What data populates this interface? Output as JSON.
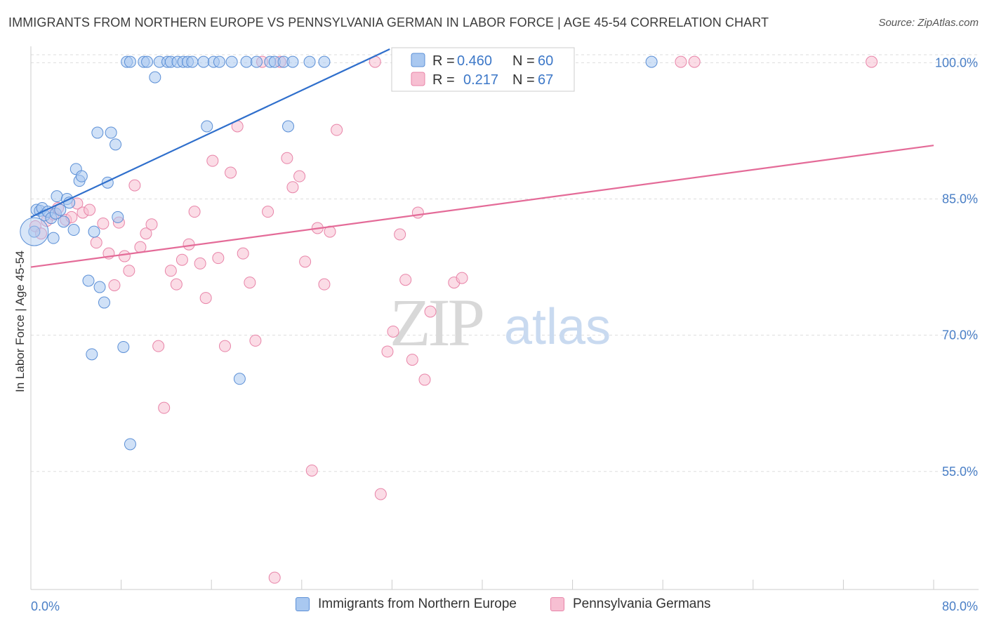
{
  "title": "IMMIGRANTS FROM NORTHERN EUROPE VS PENNSYLVANIA GERMAN IN LABOR FORCE | AGE 45-54 CORRELATION CHART",
  "source": "Source: ZipAtlas.com",
  "colors": {
    "blue_fill": "#a9c8f0",
    "blue_stroke": "#5b8fd6",
    "blue_line": "#2f6fcc",
    "pink_fill": "#f7bfd2",
    "pink_stroke": "#e884a8",
    "pink_line": "#e46b98",
    "tick_text": "#4a7fc6",
    "grid": "#dddddd"
  },
  "legend_box": {
    "rows": [
      {
        "r_label": "R =",
        "r_value": "0.460",
        "n_label": "N =",
        "n_value": "60"
      },
      {
        "r_label": "R =",
        "r_value": "0.217",
        "n_label": "N =",
        "n_value": "67"
      }
    ]
  },
  "bottom_legend": {
    "series1": "Immigrants from Northern Europe",
    "series2": "Pennsylvania Germans"
  },
  "watermark": {
    "zip": "ZIP",
    "atlas": "atlas"
  },
  "chart_data": {
    "type": "scatter",
    "title": "IMMIGRANTS FROM NORTHERN EUROPE VS PENNSYLVANIA GERMAN IN LABOR FORCE | AGE 45-54 CORRELATION CHART",
    "xlabel": "",
    "ylabel": "In Labor Force | Age 45-54",
    "xlim": [
      0,
      80
    ],
    "ylim": [
      42,
      101.5
    ],
    "x_tick_labels": [
      "0.0%",
      "80.0%"
    ],
    "y_ticks": [
      55,
      70,
      85,
      100
    ],
    "y_tick_labels": [
      "55.0%",
      "70.0%",
      "85.0%",
      "100.0%"
    ],
    "grid": true,
    "legend_position": "top-center",
    "series": [
      {
        "name": "Immigrants from Northern Europe",
        "r": 0.46,
        "n": 60,
        "trend": {
          "x": [
            0,
            31.8
          ],
          "y": [
            83.0,
            101.5
          ]
        },
        "points": [
          [
            0.3,
            81.4
          ],
          [
            0.5,
            83.8
          ],
          [
            0.8,
            83.7
          ],
          [
            1.0,
            84.0
          ],
          [
            1.2,
            83.2
          ],
          [
            1.5,
            83.6
          ],
          [
            1.8,
            82.9
          ],
          [
            2.0,
            80.7
          ],
          [
            2.2,
            83.4
          ],
          [
            2.3,
            85.3
          ],
          [
            2.6,
            83.8
          ],
          [
            2.9,
            82.5
          ],
          [
            3.2,
            85.0
          ],
          [
            3.4,
            84.6
          ],
          [
            3.8,
            81.6
          ],
          [
            4.0,
            88.3
          ],
          [
            4.3,
            87.0
          ],
          [
            4.5,
            87.5
          ],
          [
            5.1,
            76.0
          ],
          [
            5.4,
            67.9
          ],
          [
            5.6,
            81.4
          ],
          [
            5.9,
            92.3
          ],
          [
            6.1,
            75.3
          ],
          [
            6.5,
            73.6
          ],
          [
            6.8,
            86.8
          ],
          [
            7.1,
            92.3
          ],
          [
            7.5,
            91.0
          ],
          [
            7.7,
            83.0
          ],
          [
            8.2,
            68.7
          ],
          [
            8.8,
            58.0
          ],
          [
            8.5,
            100.1
          ],
          [
            8.8,
            100.1
          ],
          [
            10.0,
            100.1
          ],
          [
            10.3,
            100.1
          ],
          [
            11.0,
            98.4
          ],
          [
            11.4,
            100.1
          ],
          [
            12.1,
            100.1
          ],
          [
            12.4,
            100.1
          ],
          [
            13.0,
            100.1
          ],
          [
            13.5,
            100.1
          ],
          [
            13.9,
            100.1
          ],
          [
            14.3,
            100.1
          ],
          [
            15.3,
            100.1
          ],
          [
            15.6,
            93.0
          ],
          [
            16.2,
            100.1
          ],
          [
            16.7,
            100.1
          ],
          [
            17.8,
            100.1
          ],
          [
            18.5,
            65.2
          ],
          [
            19.1,
            100.1
          ],
          [
            20.0,
            100.1
          ],
          [
            21.2,
            100.1
          ],
          [
            21.6,
            100.1
          ],
          [
            22.4,
            100.1
          ],
          [
            22.8,
            93.0
          ],
          [
            23.2,
            100.1
          ],
          [
            24.7,
            100.1
          ],
          [
            26.0,
            100.1
          ],
          [
            32.5,
            100.1
          ],
          [
            35.1,
            100.1
          ],
          [
            55.0,
            100.1
          ]
        ]
      },
      {
        "name": "Pennsylvania Germans",
        "r": 0.217,
        "n": 67,
        "trend": {
          "x": [
            0,
            80
          ],
          "y": [
            77.5,
            90.9
          ]
        },
        "points": [
          [
            0.4,
            82.0
          ],
          [
            0.9,
            81.2
          ],
          [
            1.4,
            82.6
          ],
          [
            2.0,
            83.3
          ],
          [
            2.4,
            84.0
          ],
          [
            3.1,
            82.7
          ],
          [
            3.6,
            83.0
          ],
          [
            4.1,
            84.5
          ],
          [
            4.6,
            83.5
          ],
          [
            5.2,
            83.8
          ],
          [
            5.8,
            80.2
          ],
          [
            6.4,
            82.3
          ],
          [
            6.9,
            79.0
          ],
          [
            7.4,
            75.5
          ],
          [
            7.8,
            82.4
          ],
          [
            8.3,
            78.7
          ],
          [
            8.7,
            77.1
          ],
          [
            9.2,
            86.5
          ],
          [
            9.7,
            79.7
          ],
          [
            10.2,
            81.2
          ],
          [
            10.7,
            82.2
          ],
          [
            11.3,
            68.8
          ],
          [
            11.8,
            62.0
          ],
          [
            12.4,
            77.1
          ],
          [
            12.9,
            75.6
          ],
          [
            13.4,
            78.3
          ],
          [
            14.0,
            80.0
          ],
          [
            14.5,
            83.6
          ],
          [
            15.0,
            77.9
          ],
          [
            15.5,
            74.1
          ],
          [
            16.1,
            89.2
          ],
          [
            16.6,
            78.5
          ],
          [
            17.2,
            68.8
          ],
          [
            17.7,
            87.9
          ],
          [
            18.3,
            93.0
          ],
          [
            18.8,
            79.0
          ],
          [
            19.4,
            75.8
          ],
          [
            19.9,
            69.4
          ],
          [
            20.5,
            100.1
          ],
          [
            21.0,
            83.6
          ],
          [
            21.6,
            43.3
          ],
          [
            22.1,
            100.1
          ],
          [
            22.7,
            89.5
          ],
          [
            23.2,
            86.3
          ],
          [
            23.8,
            87.5
          ],
          [
            24.3,
            78.1
          ],
          [
            24.9,
            55.1
          ],
          [
            25.4,
            81.8
          ],
          [
            26.0,
            75.6
          ],
          [
            26.5,
            81.4
          ],
          [
            27.1,
            92.6
          ],
          [
            30.5,
            100.1
          ],
          [
            31.0,
            52.5
          ],
          [
            31.6,
            68.2
          ],
          [
            32.1,
            70.4
          ],
          [
            32.7,
            81.1
          ],
          [
            33.2,
            76.1
          ],
          [
            33.8,
            67.3
          ],
          [
            34.3,
            83.5
          ],
          [
            34.9,
            65.1
          ],
          [
            35.4,
            72.6
          ],
          [
            37.5,
            75.8
          ],
          [
            38.2,
            76.3
          ],
          [
            44.5,
            100.1
          ],
          [
            57.6,
            100.1
          ],
          [
            58.8,
            100.1
          ],
          [
            74.5,
            100.1
          ]
        ]
      }
    ]
  }
}
